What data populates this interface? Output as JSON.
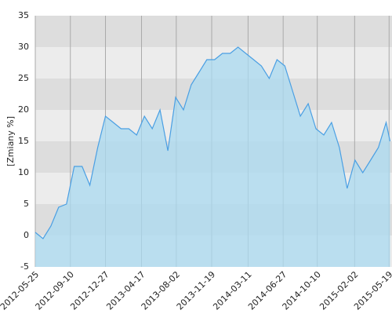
{
  "chart_data": {
    "type": "area",
    "y_label": "[Zmiany %]",
    "x": [
      "2012-05-25",
      "2012-06-18",
      "2012-07-12",
      "2012-08-05",
      "2012-08-29",
      "2012-09-22",
      "2012-10-16",
      "2012-11-09",
      "2012-12-03",
      "2012-12-27",
      "2013-01-20",
      "2013-02-13",
      "2013-03-09",
      "2013-04-02",
      "2013-04-26",
      "2013-05-20",
      "2013-06-13",
      "2013-07-07",
      "2013-07-31",
      "2013-08-24",
      "2013-09-17",
      "2013-10-11",
      "2013-11-04",
      "2013-11-28",
      "2013-12-22",
      "2014-01-15",
      "2014-02-08",
      "2014-03-04",
      "2014-03-28",
      "2014-04-21",
      "2014-05-15",
      "2014-06-08",
      "2014-07-02",
      "2014-07-26",
      "2014-08-19",
      "2014-09-12",
      "2014-10-06",
      "2014-10-30",
      "2014-11-23",
      "2014-12-17",
      "2015-01-10",
      "2015-02-03",
      "2015-02-27",
      "2015-03-23",
      "2015-04-16",
      "2015-05-10",
      "2015-05-22"
    ],
    "values": [
      0.5,
      -0.5,
      1.5,
      4.5,
      5,
      11,
      11,
      8,
      14,
      19,
      18,
      17,
      17,
      16,
      19,
      17,
      20,
      13.5,
      22,
      20,
      24,
      26,
      28,
      28,
      29,
      29,
      30,
      29,
      28,
      27,
      25,
      28,
      27,
      23,
      19,
      21,
      17,
      16,
      18,
      14,
      7.5,
      12,
      10,
      12,
      14,
      18,
      15
    ],
    "line_color": "#4a9fe3",
    "fill_color": "#a9d9f0",
    "band_colors": [
      "#ececec",
      "#dddddd"
    ],
    "xlim": [
      "2012-05-25",
      "2015-05-28"
    ],
    "xticks": [
      "2012-05-25",
      "2012-09-10",
      "2012-12-27",
      "2013-04-17",
      "2013-08-02",
      "2013-11-19",
      "2014-03-11",
      "2014-06-27",
      "2014-10-10",
      "2015-02-02",
      "2015-05-19"
    ],
    "ylim": [
      -5,
      35
    ],
    "yticks": [
      -5,
      0,
      5,
      10,
      15,
      20,
      25,
      30,
      35
    ],
    "grid": true
  }
}
